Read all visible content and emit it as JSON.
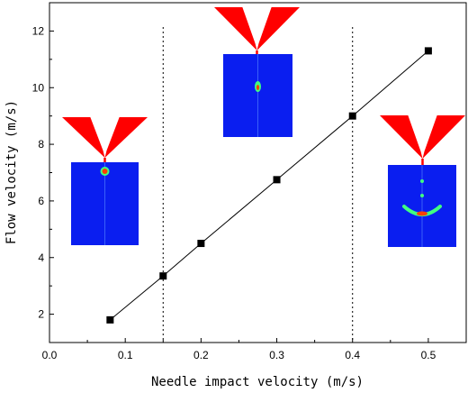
{
  "chart_data": {
    "type": "scatter",
    "title": "",
    "xlabel": "Needle impact velocity (m/s)",
    "ylabel": "Flow velocity (m/s)",
    "xlim": [
      0.0,
      0.55
    ],
    "ylim": [
      1.0,
      13.0
    ],
    "xticks": [
      "0.0",
      "0.1",
      "0.2",
      "0.3",
      "0.4",
      "0.5"
    ],
    "yticks": [
      "2",
      "4",
      "6",
      "8",
      "10",
      "12"
    ],
    "grid": false,
    "series": [
      {
        "x": [
          0.08,
          0.15,
          0.2,
          0.3,
          0.4,
          0.5
        ],
        "y": [
          1.8,
          3.35,
          4.5,
          6.75,
          9.0,
          11.3
        ],
        "marker": "square",
        "line": "solid",
        "color": "#000000"
      }
    ],
    "reference_lines_x": [
      0.15,
      0.4
    ],
    "inset_colors": {
      "nozzle": "#ff0000",
      "domain": "#0a1ef0",
      "droplet_core": "#ff4000",
      "droplet_edge": "#40ff80"
    },
    "insets": [
      "nozzle-and-droplet-0.08",
      "nozzle-and-droplet-0.28",
      "nozzle-and-droplet-0.5"
    ]
  }
}
